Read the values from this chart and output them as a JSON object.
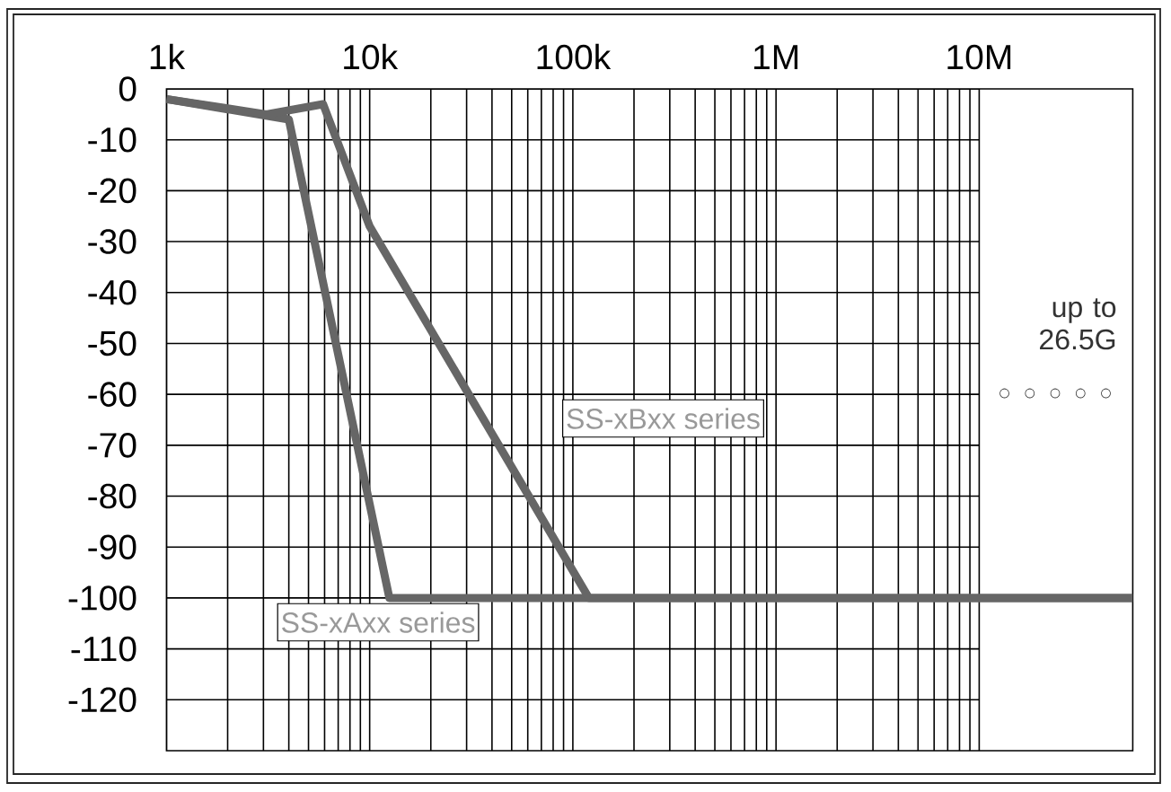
{
  "chart_data": {
    "type": "line",
    "log": "x",
    "grid": true,
    "xlim": [
      1000,
      57000000
    ],
    "ylim": [
      -130,
      0
    ],
    "xticks": [
      {
        "value": 1000,
        "label": "1k"
      },
      {
        "value": 2000,
        "label": null
      },
      {
        "value": 3000,
        "label": null
      },
      {
        "value": 4000,
        "label": null
      },
      {
        "value": 5000,
        "label": null
      },
      {
        "value": 6000,
        "label": null
      },
      {
        "value": 7000,
        "label": null
      },
      {
        "value": 8000,
        "label": null
      },
      {
        "value": 9000,
        "label": null
      },
      {
        "value": 10000,
        "label": "10k"
      },
      {
        "value": 20000,
        "label": null
      },
      {
        "value": 30000,
        "label": null
      },
      {
        "value": 40000,
        "label": null
      },
      {
        "value": 50000,
        "label": null
      },
      {
        "value": 60000,
        "label": null
      },
      {
        "value": 70000,
        "label": null
      },
      {
        "value": 80000,
        "label": null
      },
      {
        "value": 90000,
        "label": null
      },
      {
        "value": 100000,
        "label": "100k"
      },
      {
        "value": 200000,
        "label": null
      },
      {
        "value": 300000,
        "label": null
      },
      {
        "value": 400000,
        "label": null
      },
      {
        "value": 500000,
        "label": null
      },
      {
        "value": 600000,
        "label": null
      },
      {
        "value": 700000,
        "label": null
      },
      {
        "value": 800000,
        "label": null
      },
      {
        "value": 900000,
        "label": null
      },
      {
        "value": 1000000,
        "label": "1M"
      },
      {
        "value": 2000000,
        "label": null
      },
      {
        "value": 3000000,
        "label": null
      },
      {
        "value": 4000000,
        "label": null
      },
      {
        "value": 5000000,
        "label": null
      },
      {
        "value": 6000000,
        "label": null
      },
      {
        "value": 7000000,
        "label": null
      },
      {
        "value": 8000000,
        "label": null
      },
      {
        "value": 9000000,
        "label": null
      },
      {
        "value": 10000000,
        "label": "10M"
      }
    ],
    "yticks": [
      0,
      -10,
      -20,
      -30,
      -40,
      -50,
      -60,
      -70,
      -80,
      -90,
      -100,
      -110,
      -120
    ],
    "series": [
      {
        "name": "SS-xAxx series",
        "color": "#666666",
        "x": [
          1000,
          4000,
          12500,
          57000000
        ],
        "values": [
          -2,
          -6,
          -100,
          -100
        ]
      },
      {
        "name": "SS-xBxx series",
        "color": "#666666",
        "x": [
          1000,
          3100,
          5900,
          10000,
          120000,
          57000000
        ],
        "values": [
          -2,
          -5,
          -3,
          -27,
          -100,
          -100
        ]
      }
    ],
    "annotations": [
      "up to 26.5G",
      "○ ○ ○ ○ ○"
    ]
  }
}
